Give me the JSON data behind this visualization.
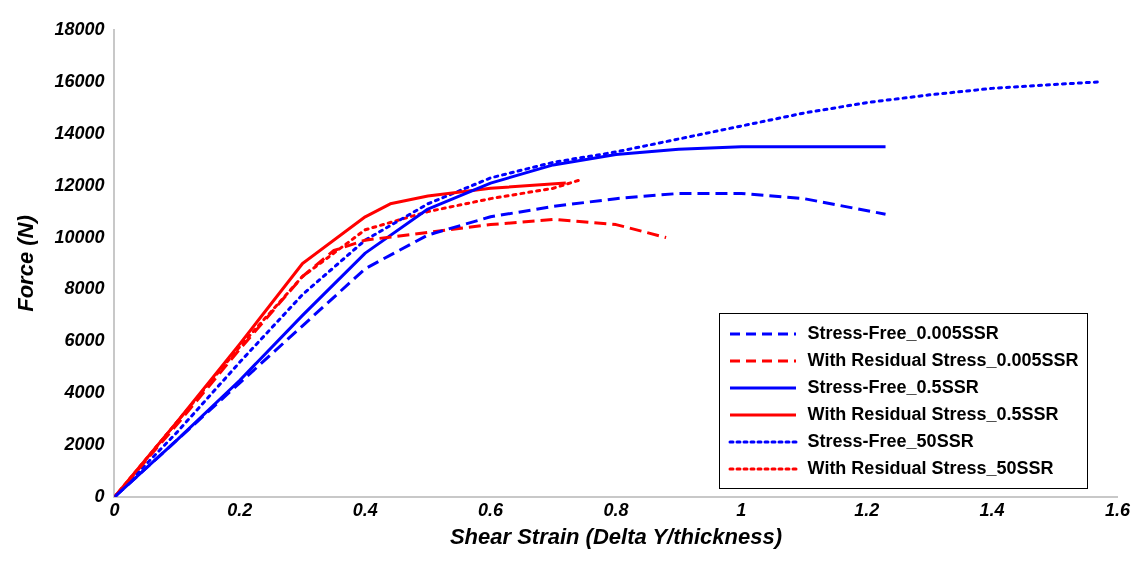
{
  "chart_data": {
    "type": "line",
    "xlabel": "Shear Strain (Delta Y/thickness)",
    "ylabel": "Force (N)",
    "xlim": [
      0,
      1.6
    ],
    "xticks": [
      0,
      0.2,
      0.4,
      0.6,
      0.8,
      1,
      1.2,
      1.4,
      1.6
    ],
    "ylim": [
      0,
      18000
    ],
    "yticks": [
      0,
      2000,
      4000,
      6000,
      8000,
      10000,
      12000,
      14000,
      16000,
      18000
    ],
    "grid": false,
    "legend": "bottom right",
    "marker": "none",
    "series": [
      {
        "name": "Stress-Free_0.005SSR",
        "color": "#0000ff",
        "line_style": "dashed",
        "x": [
          0,
          0.1,
          0.2,
          0.3,
          0.4,
          0.5,
          0.6,
          0.7,
          0.8,
          0.9,
          1.0,
          1.1,
          1.23
        ],
        "values": [
          0,
          2200,
          4400,
          6600,
          8800,
          10100,
          10800,
          11200,
          11500,
          11700,
          11700,
          11500,
          10900
        ]
      },
      {
        "name": "With Residual Stress_0.005SSR",
        "color": "#ff0000",
        "line_style": "dashed",
        "x": [
          0,
          0.1,
          0.2,
          0.3,
          0.35,
          0.4,
          0.5,
          0.6,
          0.7,
          0.8,
          0.88
        ],
        "values": [
          0,
          2800,
          5700,
          8500,
          9500,
          9900,
          10200,
          10500,
          10700,
          10500,
          10000
        ]
      },
      {
        "name": "Stress-Free_0.5SSR",
        "color": "#0000ff",
        "line_style": "solid",
        "x": [
          0,
          0.1,
          0.2,
          0.3,
          0.4,
          0.5,
          0.6,
          0.7,
          0.8,
          0.9,
          1.0,
          1.1,
          1.23
        ],
        "values": [
          0,
          2200,
          4500,
          7000,
          9400,
          11100,
          12100,
          12800,
          13200,
          13400,
          13500,
          13500,
          13500
        ]
      },
      {
        "name": "With Residual Stress_0.5SSR",
        "color": "#ff0000",
        "line_style": "solid",
        "x": [
          0,
          0.1,
          0.2,
          0.3,
          0.4,
          0.44,
          0.5,
          0.6,
          0.72
        ],
        "values": [
          0,
          2900,
          5900,
          9000,
          10800,
          11300,
          11600,
          11900,
          12100
        ]
      },
      {
        "name": "Stress-Free_50SSR",
        "color": "#0000ff",
        "line_style": "dotted",
        "x": [
          0,
          0.1,
          0.2,
          0.3,
          0.4,
          0.5,
          0.6,
          0.7,
          0.8,
          0.9,
          1.0,
          1.1,
          1.2,
          1.3,
          1.4,
          1.5,
          1.57
        ],
        "values": [
          0,
          2500,
          5200,
          7800,
          9900,
          11300,
          12300,
          12900,
          13300,
          13800,
          14300,
          14800,
          15200,
          15500,
          15750,
          15900,
          16000
        ]
      },
      {
        "name": "With Residual Stress_50SSR",
        "color": "#ff0000",
        "line_style": "dotted",
        "x": [
          0,
          0.1,
          0.2,
          0.3,
          0.4,
          0.5,
          0.6,
          0.7,
          0.74
        ],
        "values": [
          0,
          2900,
          5800,
          8500,
          10300,
          11000,
          11500,
          11900,
          12200
        ]
      }
    ]
  }
}
